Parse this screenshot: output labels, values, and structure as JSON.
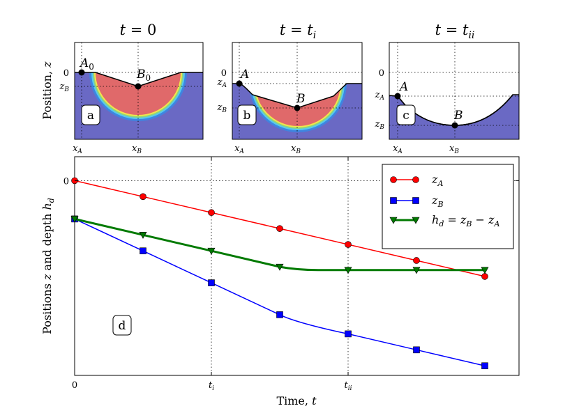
{
  "colors": {
    "fluid": "#6a69c4",
    "melt": "#e0696a",
    "ring": [
      "#f2e64a",
      "#8fd37f",
      "#55c9f0",
      "#3f84e0"
    ],
    "zA": "#ff0000",
    "zB": "#0000ff",
    "hd": "#007a00"
  },
  "panels": [
    {
      "id": "a",
      "title": "t = 0",
      "ylabel": "Position, z",
      "y_ticks": [
        "0",
        "zB"
      ],
      "x_ticks": [
        "xA",
        "xB"
      ],
      "label": "a",
      "point_A": "A0",
      "point_B": "B0"
    },
    {
      "id": "b",
      "title": "t = ti",
      "y_ticks": [
        "0",
        "zA",
        "zB"
      ],
      "x_ticks": [
        "xA",
        "xB"
      ],
      "label": "b",
      "point_A": "A",
      "point_B": "B"
    },
    {
      "id": "c",
      "title": "t = tii",
      "y_ticks": [
        "0",
        "zA",
        "zB"
      ],
      "x_ticks": [
        "xA",
        "xB"
      ],
      "label": "c",
      "point_A": "A",
      "point_B": "B"
    }
  ],
  "main": {
    "label": "d",
    "xlabel": "Time, t",
    "ylabel": "Positions z and depth hd"
  },
  "chart_data": {
    "type": "line",
    "xlabel": "Time, t",
    "ylabel": "Positions z and depth hd",
    "x_ticks": [
      "0",
      "ti",
      "tii"
    ],
    "x_tick_values": [
      0,
      2,
      4
    ],
    "y_ticks": [
      "0"
    ],
    "y_tick_values": [
      0
    ],
    "xlim": [
      0,
      6.5
    ],
    "ylim": [
      -12.2,
      1.5
    ],
    "grid": true,
    "legend_position": "top-right",
    "x": [
      0,
      1,
      2,
      3,
      4,
      5,
      6
    ],
    "series": [
      {
        "name": "zA",
        "legend": "z_A",
        "marker": "circle",
        "color": "#ff0000",
        "values": [
          0,
          -1,
          -2,
          -3,
          -4,
          -5,
          -6
        ]
      },
      {
        "name": "zB",
        "legend": "z_B",
        "marker": "square",
        "color": "#0000ff",
        "values": [
          -2.4,
          -4.4,
          -6.4,
          -8.4,
          -9.6,
          -10.6,
          -11.6
        ]
      },
      {
        "name": "hd",
        "legend": "h_d = z_B − z_A",
        "marker": "triangle-down",
        "color": "#007a00",
        "values": [
          -2.4,
          -3.4,
          -4.4,
          -5.4,
          -5.6,
          -5.6,
          -5.6
        ]
      }
    ]
  }
}
